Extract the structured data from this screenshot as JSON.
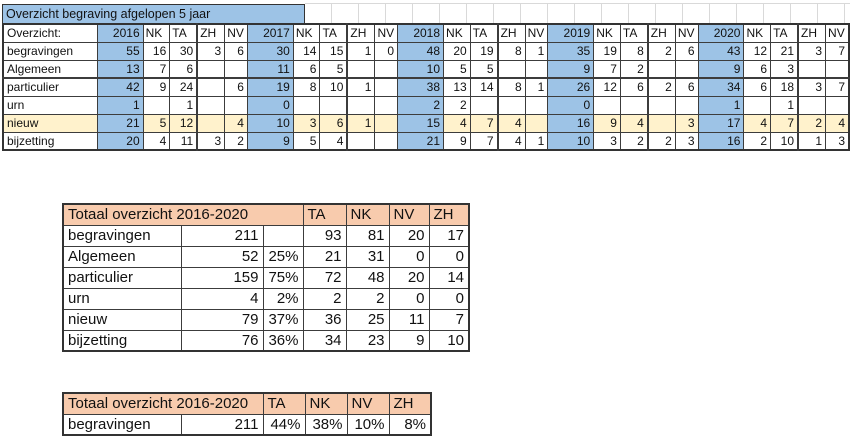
{
  "colors": {
    "header_blue": "#9DC3E6",
    "highlight_cream": "#FFF2CC",
    "header_peach": "#F8CBAD",
    "gridline": "#D9D9D9",
    "border": "#333333"
  },
  "top_table": {
    "title": "Overzicht begraving afgelopen 5 jaar",
    "corner_label": "Overzicht:",
    "years": [
      "2016",
      "2017",
      "2018",
      "2019",
      "2020"
    ],
    "sub_columns": [
      "NK",
      "TA",
      "ZH",
      "NV"
    ],
    "rows": [
      {
        "label": "begravingen",
        "highlight": false,
        "groups": [
          [
            "55",
            "16",
            "30",
            "3",
            "6"
          ],
          [
            "30",
            "14",
            "15",
            "1",
            "0"
          ],
          [
            "48",
            "20",
            "19",
            "8",
            "1"
          ],
          [
            "35",
            "19",
            "8",
            "2",
            "6"
          ],
          [
            "43",
            "12",
            "21",
            "3",
            "7"
          ]
        ]
      },
      {
        "label": "Algemeen",
        "highlight": false,
        "groups": [
          [
            "13",
            "7",
            "6",
            "",
            ""
          ],
          [
            "11",
            "6",
            "5",
            "",
            ""
          ],
          [
            "10",
            "5",
            "5",
            "",
            ""
          ],
          [
            "9",
            "7",
            "2",
            "",
            ""
          ],
          [
            "9",
            "6",
            "3",
            "",
            ""
          ]
        ]
      },
      {
        "label": "particulier",
        "highlight": false,
        "groups": [
          [
            "42",
            "9",
            "24",
            "",
            "6"
          ],
          [
            "19",
            "8",
            "10",
            "1",
            ""
          ],
          [
            "38",
            "13",
            "14",
            "8",
            "1"
          ],
          [
            "26",
            "12",
            "6",
            "2",
            "6"
          ],
          [
            "34",
            "6",
            "18",
            "3",
            "7"
          ]
        ]
      },
      {
        "label": "urn",
        "highlight": false,
        "groups": [
          [
            "1",
            "",
            "1",
            "",
            ""
          ],
          [
            "0",
            "",
            "",
            "",
            ""
          ],
          [
            "2",
            "2",
            "",
            "",
            ""
          ],
          [
            "0",
            "",
            "",
            "",
            ""
          ],
          [
            "1",
            "",
            "1",
            "",
            ""
          ]
        ]
      },
      {
        "label": "nieuw",
        "highlight": true,
        "groups": [
          [
            "21",
            "5",
            "12",
            "",
            "4"
          ],
          [
            "10",
            "3",
            "6",
            "1",
            ""
          ],
          [
            "15",
            "4",
            "7",
            "4",
            ""
          ],
          [
            "16",
            "9",
            "4",
            "",
            "3"
          ],
          [
            "17",
            "4",
            "7",
            "2",
            "4"
          ]
        ]
      },
      {
        "label": "bijzetting",
        "highlight": false,
        "groups": [
          [
            "20",
            "4",
            "11",
            "3",
            "2"
          ],
          [
            "9",
            "5",
            "4",
            "",
            ""
          ],
          [
            "21",
            "9",
            "7",
            "4",
            "1"
          ],
          [
            "10",
            "3",
            "2",
            "2",
            "3"
          ],
          [
            "16",
            "2",
            "10",
            "1",
            "3"
          ]
        ]
      }
    ]
  },
  "totals_table": {
    "title": "Totaal overzicht 2016-2020",
    "columns": [
      "TA",
      "NK",
      "NV",
      "ZH"
    ],
    "rows": [
      {
        "label": "begravingen",
        "total": "211",
        "pct": "",
        "values": [
          "93",
          "81",
          "20",
          "17"
        ]
      },
      {
        "label": "Algemeen",
        "total": "52",
        "pct": "25%",
        "values": [
          "21",
          "31",
          "0",
          "0"
        ]
      },
      {
        "label": "particulier",
        "total": "159",
        "pct": "75%",
        "values": [
          "72",
          "48",
          "20",
          "14"
        ]
      },
      {
        "label": "urn",
        "total": "4",
        "pct": "2%",
        "values": [
          "2",
          "2",
          "0",
          "0"
        ]
      },
      {
        "label": "nieuw",
        "total": "79",
        "pct": "37%",
        "values": [
          "36",
          "25",
          "11",
          "7"
        ]
      },
      {
        "label": "bijzetting",
        "total": "76",
        "pct": "36%",
        "values": [
          "34",
          "23",
          "9",
          "10"
        ]
      }
    ]
  },
  "pct_table": {
    "title": "Totaal overzicht 2016-2020",
    "columns": [
      "TA",
      "NK",
      "NV",
      "ZH"
    ],
    "rows": [
      {
        "label": "begravingen",
        "total": "211",
        "values": [
          "44%",
          "38%",
          "10%",
          "8%"
        ]
      }
    ]
  }
}
